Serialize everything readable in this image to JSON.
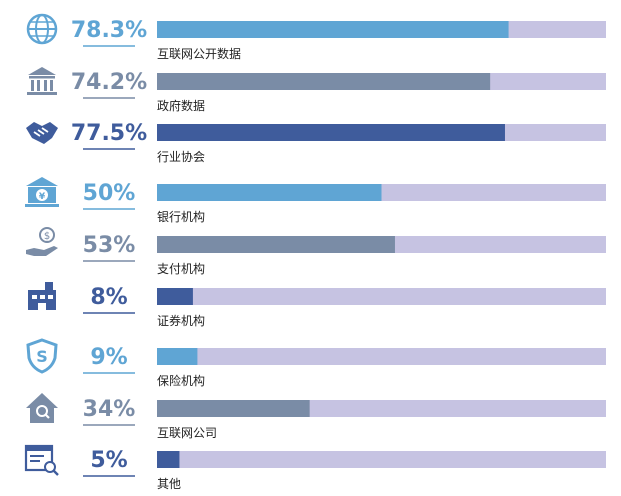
{
  "chart_data": {
    "type": "bar",
    "orientation": "horizontal",
    "xlim": [
      0,
      100
    ],
    "unit": "%",
    "grid": false,
    "legend": "none",
    "track_color": "#c6c3e2",
    "categories": [
      "互联网公开数据",
      "政府数据",
      "行业协会",
      "银行机构",
      "支付机构",
      "证券机构",
      "保险机构",
      "互联网公司",
      "其他"
    ],
    "values": [
      78.3,
      74.2,
      77.5,
      50,
      53,
      8,
      9,
      34,
      5
    ],
    "labels": [
      "78.3%",
      "74.2%",
      "77.5%",
      "50%",
      "53%",
      "8%",
      "9%",
      "34%",
      "5%"
    ],
    "colors": [
      "#5fa5d4",
      "#7a8ca6",
      "#3f5c9c",
      "#5fa5d4",
      "#7a8ca6",
      "#3f5c9c",
      "#5fa5d4",
      "#7a8ca6",
      "#3f5c9c"
    ],
    "icons": [
      "globe-icon",
      "government-building-icon",
      "handshake-icon",
      "bank-icon",
      "payment-hand-coin-icon",
      "securities-building-icon",
      "insurance-shield-icon",
      "internet-company-house-icon",
      "other-document-search-icon"
    ]
  }
}
